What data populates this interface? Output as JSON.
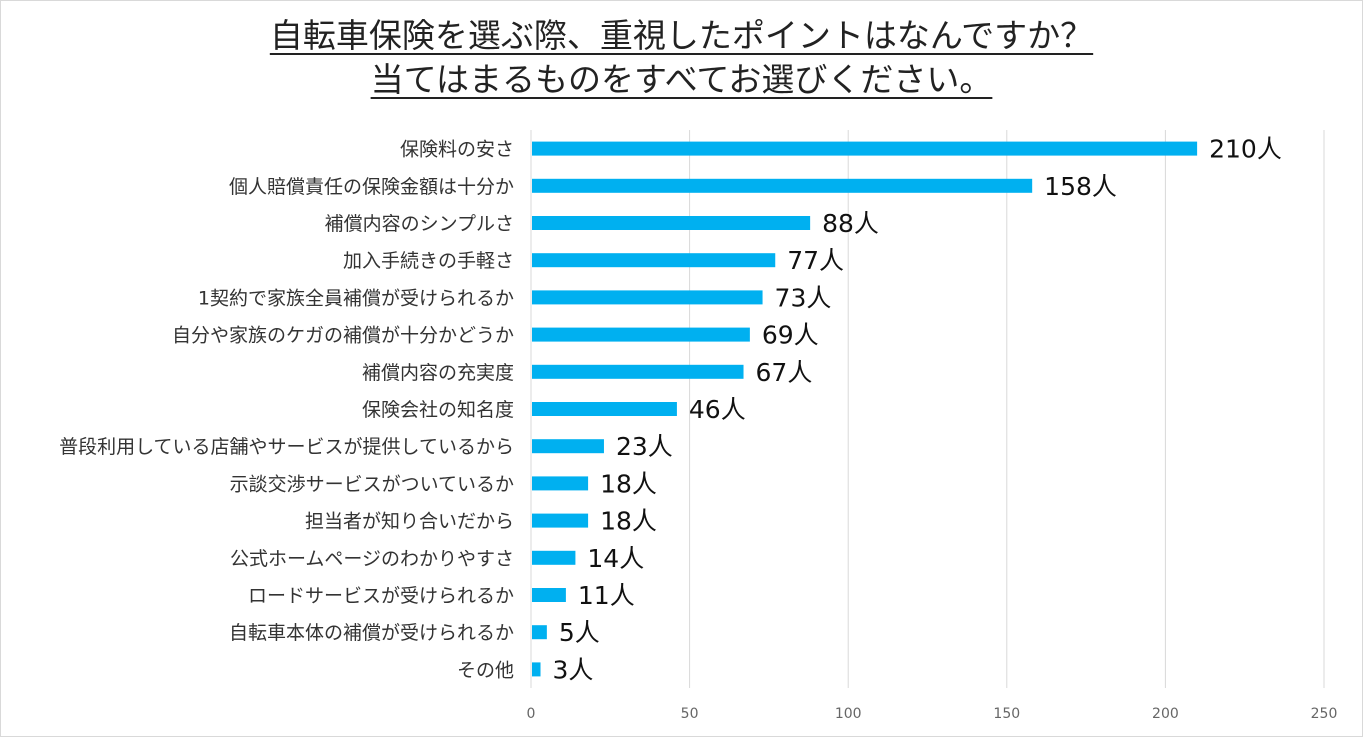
{
  "chart_data": {
    "type": "bar",
    "orientation": "horizontal",
    "title_lines": [
      "自転車保険を選ぶ際、重視したポイントはなんですか？",
      "当てはまるものをすべてお選びください。"
    ],
    "categories": [
      "保険料の安さ",
      "個人賠償責任の保険金額は十分か",
      "補償内容のシンプルさ",
      "加入手続きの手軽さ",
      "1契約で家族全員補償が受けられるか",
      "自分や家族のケガの補償が十分かどうか",
      "補償内容の充実度",
      "保険会社の知名度",
      "普段利用している店舗やサービスが提供しているから",
      "示談交渉サービスがついているか",
      "担当者が知り合いだから",
      "公式ホームページのわかりやすさ",
      "ロードサービスが受けられるか",
      "自転車本体の補償が受けられるか",
      "その他"
    ],
    "values": [
      210,
      158,
      88,
      77,
      73,
      69,
      67,
      46,
      23,
      18,
      18,
      14,
      11,
      5,
      3
    ],
    "data_labels": [
      "210人",
      "158人",
      "88人",
      "77人",
      "73人",
      "69人",
      "67人",
      "46人",
      "23人",
      "18人",
      "18人",
      "14人",
      "11人",
      "5人",
      "3人"
    ],
    "xlim": [
      0,
      250
    ],
    "xticks": [
      0,
      50,
      100,
      150,
      200,
      250
    ],
    "grid": true,
    "bar_color": "#00b0f0",
    "grid_color": "#d9d9d9"
  }
}
